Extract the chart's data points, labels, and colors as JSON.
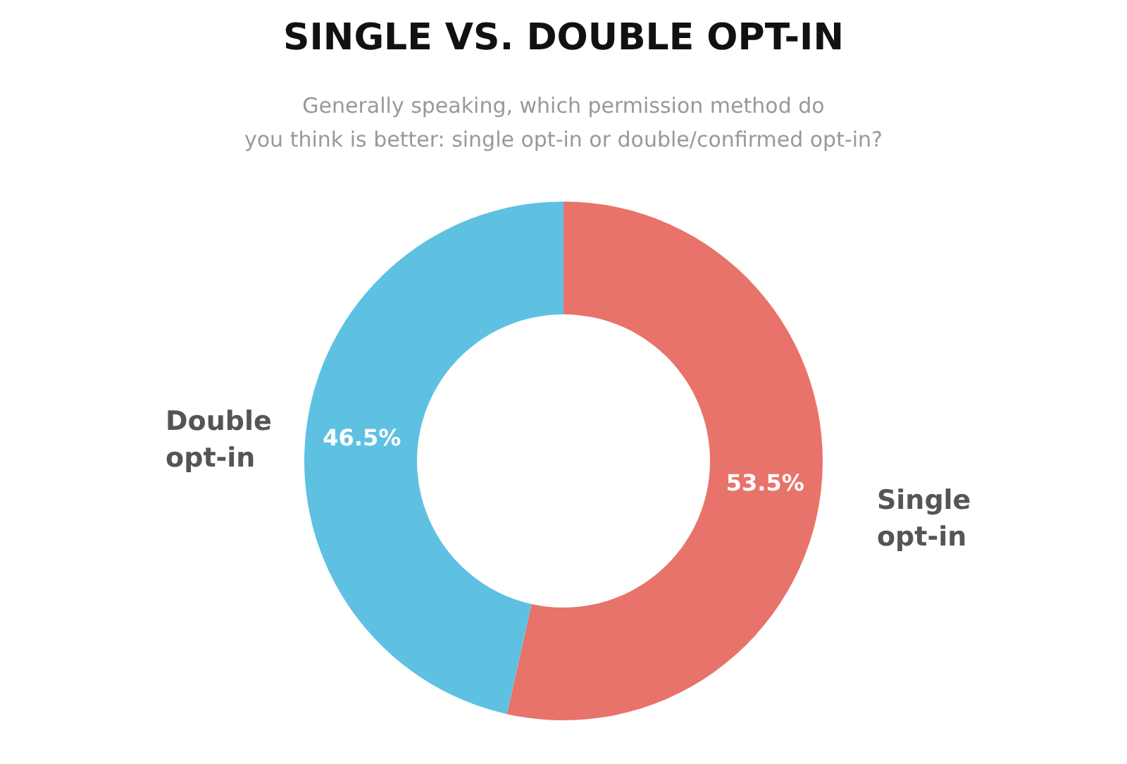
{
  "chart_data": {
    "type": "donut",
    "title": "SINGLE VS. DOUBLE OPT-IN",
    "subtitle": "Generally speaking, which permission method do\nyou think is better: single opt-in or double/confirmed opt-in?",
    "categories": [
      "Single opt-in",
      "Double opt-in"
    ],
    "values": [
      53.5,
      46.5
    ],
    "colors": [
      "#e8736a",
      "#5fc1e2"
    ],
    "value_labels": [
      "53.5%",
      "46.5%"
    ],
    "legend": false
  }
}
